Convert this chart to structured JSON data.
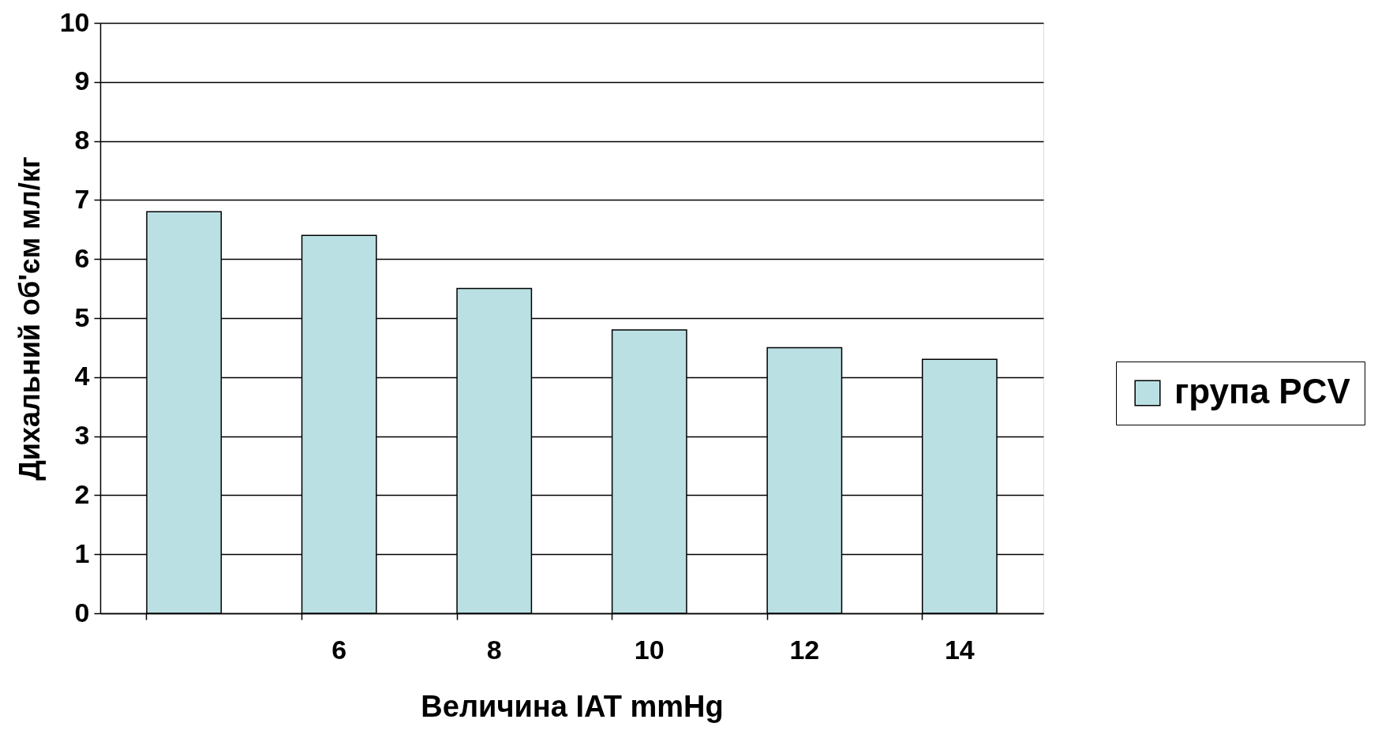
{
  "chart_data": {
    "type": "bar",
    "xlabel": "Величина IAT mmHg",
    "ylabel": "Дихальний об'єм мл/кг",
    "categories": [
      null,
      "6",
      "8",
      "10",
      "12",
      "14"
    ],
    "series": [
      {
        "name": "група PCV",
        "color": "#bbe0e3",
        "values": [
          6.8,
          6.4,
          5.5,
          4.8,
          4.5,
          4.3
        ]
      }
    ],
    "ylim": [
      0,
      10
    ],
    "yticks": [
      0,
      1,
      2,
      3,
      4,
      5,
      6,
      7,
      8,
      9,
      10
    ],
    "grid": "y",
    "legend": "right"
  }
}
